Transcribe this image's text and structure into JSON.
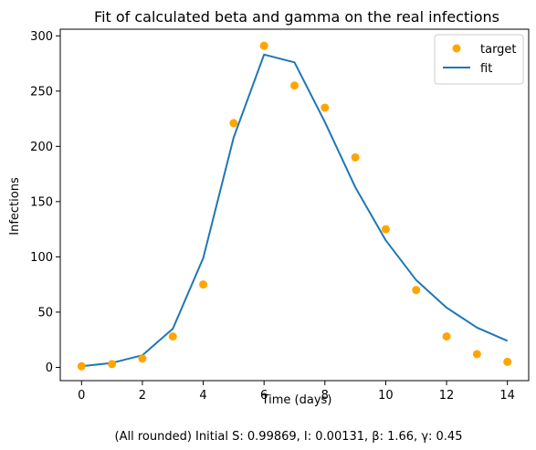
{
  "chart_data": {
    "type": "scatter",
    "title": "Fit of calculated beta and gamma on the real infections",
    "xlabel": "Time (days)",
    "ylabel": "Infections",
    "caption": "(All rounded) Initial S: 0.99869, I: 0.00131, β: 1.66, γ: 0.45",
    "xlim": [
      -0.7,
      14.7
    ],
    "ylim": [
      -12,
      306
    ],
    "x_ticks": [
      0,
      2,
      4,
      6,
      8,
      10,
      12,
      14
    ],
    "y_ticks": [
      0,
      50,
      100,
      150,
      200,
      250,
      300
    ],
    "grid": false,
    "legend_position": "top-right",
    "series": [
      {
        "name": "target",
        "kind": "scatter",
        "color": "#FFA500",
        "x": [
          0,
          1,
          2,
          3,
          4,
          5,
          6,
          7,
          8,
          9,
          10,
          11,
          12,
          13,
          14
        ],
        "y": [
          1,
          3,
          8,
          28,
          75,
          221,
          291,
          255,
          235,
          190,
          125,
          70,
          28,
          12,
          5
        ]
      },
      {
        "name": "fit",
        "kind": "line",
        "color": "#1f77b4",
        "x": [
          0,
          1,
          2,
          3,
          4,
          5,
          6,
          7,
          8,
          9,
          10,
          11,
          12,
          13,
          14
        ],
        "y": [
          1,
          4,
          11,
          35,
          99,
          208,
          283,
          276,
          222,
          163,
          115,
          79,
          54,
          36,
          24
        ]
      }
    ]
  }
}
